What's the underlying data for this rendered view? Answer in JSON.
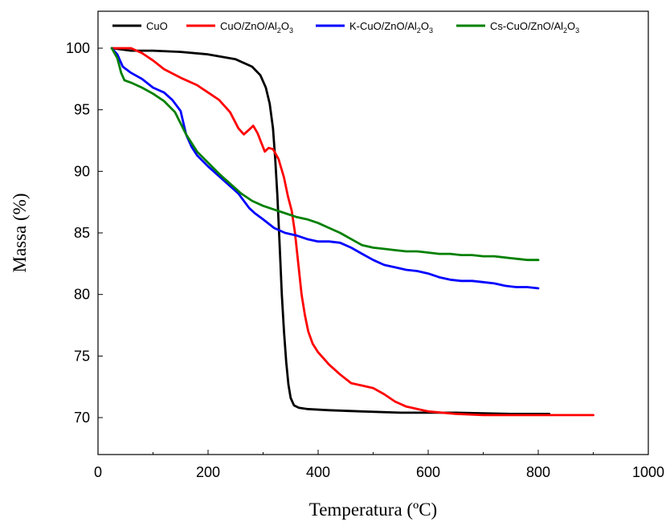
{
  "chart_data": {
    "type": "line",
    "title": "",
    "xlabel": "Temperatura (ºC)",
    "ylabel": "Massa (%)",
    "xlim": [
      0,
      1000
    ],
    "ylim": [
      67,
      103
    ],
    "xticks": [
      0,
      200,
      400,
      600,
      800,
      1000
    ],
    "yticks": [
      70,
      75,
      80,
      85,
      90,
      95,
      100
    ],
    "grid": false,
    "legend_position": "top",
    "series": [
      {
        "name": "CuO",
        "color": "#000000",
        "points": [
          [
            25,
            100
          ],
          [
            60,
            99.8
          ],
          [
            100,
            99.8
          ],
          [
            150,
            99.7
          ],
          [
            200,
            99.5
          ],
          [
            250,
            99.1
          ],
          [
            280,
            98.5
          ],
          [
            295,
            97.8
          ],
          [
            305,
            96.8
          ],
          [
            312,
            95.5
          ],
          [
            318,
            93.5
          ],
          [
            322,
            91
          ],
          [
            326,
            88
          ],
          [
            330,
            84
          ],
          [
            334,
            80
          ],
          [
            338,
            77
          ],
          [
            342,
            74.5
          ],
          [
            346,
            72.7
          ],
          [
            350,
            71.6
          ],
          [
            356,
            71
          ],
          [
            365,
            70.8
          ],
          [
            380,
            70.7
          ],
          [
            420,
            70.6
          ],
          [
            480,
            70.5
          ],
          [
            550,
            70.4
          ],
          [
            650,
            70.4
          ],
          [
            750,
            70.3
          ],
          [
            820,
            70.3
          ]
        ]
      },
      {
        "name": "CuO/ZnO/Al2O3",
        "name_sub": [
          "CuO/ZnO/Al",
          "2",
          "O",
          "3"
        ],
        "color": "#ff0000",
        "points": [
          [
            25,
            100
          ],
          [
            40,
            100
          ],
          [
            60,
            100
          ],
          [
            80,
            99.6
          ],
          [
            100,
            99
          ],
          [
            120,
            98.3
          ],
          [
            150,
            97.6
          ],
          [
            180,
            97
          ],
          [
            200,
            96.4
          ],
          [
            220,
            95.8
          ],
          [
            240,
            94.8
          ],
          [
            255,
            93.5
          ],
          [
            265,
            93
          ],
          [
            275,
            93.4
          ],
          [
            282,
            93.7
          ],
          [
            290,
            93.1
          ],
          [
            297,
            92.3
          ],
          [
            303,
            91.6
          ],
          [
            310,
            91.9
          ],
          [
            318,
            91.8
          ],
          [
            328,
            91
          ],
          [
            338,
            89.5
          ],
          [
            345,
            88
          ],
          [
            352,
            86.8
          ],
          [
            358,
            85
          ],
          [
            364,
            82.5
          ],
          [
            370,
            80
          ],
          [
            376,
            78.3
          ],
          [
            382,
            77
          ],
          [
            390,
            76
          ],
          [
            400,
            75.3
          ],
          [
            420,
            74.3
          ],
          [
            440,
            73.5
          ],
          [
            460,
            72.8
          ],
          [
            480,
            72.6
          ],
          [
            500,
            72.4
          ],
          [
            520,
            71.9
          ],
          [
            540,
            71.3
          ],
          [
            560,
            70.9
          ],
          [
            580,
            70.7
          ],
          [
            600,
            70.5
          ],
          [
            650,
            70.3
          ],
          [
            700,
            70.2
          ],
          [
            750,
            70.2
          ],
          [
            800,
            70.2
          ],
          [
            850,
            70.2
          ],
          [
            900,
            70.2
          ]
        ]
      },
      {
        "name": "K-CuO/ZnO/Al2O3",
        "name_sub": [
          "K-CuO/ZnO/Al",
          "2",
          "O",
          "3"
        ],
        "color": "#0000ff",
        "points": [
          [
            25,
            100
          ],
          [
            35,
            99.5
          ],
          [
            45,
            98.5
          ],
          [
            60,
            98
          ],
          [
            80,
            97.5
          ],
          [
            100,
            96.8
          ],
          [
            110,
            96.6
          ],
          [
            120,
            96.4
          ],
          [
            135,
            95.8
          ],
          [
            150,
            94.9
          ],
          [
            160,
            93
          ],
          [
            170,
            92
          ],
          [
            180,
            91.3
          ],
          [
            200,
            90.4
          ],
          [
            220,
            89.6
          ],
          [
            240,
            88.8
          ],
          [
            255,
            88.2
          ],
          [
            265,
            87.6
          ],
          [
            275,
            87
          ],
          [
            285,
            86.6
          ],
          [
            300,
            86.1
          ],
          [
            320,
            85.4
          ],
          [
            340,
            85
          ],
          [
            360,
            84.8
          ],
          [
            380,
            84.5
          ],
          [
            400,
            84.3
          ],
          [
            420,
            84.3
          ],
          [
            440,
            84.2
          ],
          [
            460,
            83.8
          ],
          [
            480,
            83.3
          ],
          [
            500,
            82.8
          ],
          [
            520,
            82.4
          ],
          [
            540,
            82.2
          ],
          [
            560,
            82
          ],
          [
            580,
            81.9
          ],
          [
            600,
            81.7
          ],
          [
            620,
            81.4
          ],
          [
            640,
            81.2
          ],
          [
            660,
            81.1
          ],
          [
            680,
            81.1
          ],
          [
            700,
            81
          ],
          [
            720,
            80.9
          ],
          [
            740,
            80.7
          ],
          [
            760,
            80.6
          ],
          [
            780,
            80.6
          ],
          [
            800,
            80.5
          ]
        ]
      },
      {
        "name": "Cs-CuO/ZnO/Al2O3",
        "name_sub": [
          "Cs-CuO/ZnO/Al",
          "2",
          "O",
          "3"
        ],
        "color": "#008000",
        "points": [
          [
            25,
            100
          ],
          [
            35,
            99.2
          ],
          [
            42,
            98
          ],
          [
            48,
            97.4
          ],
          [
            60,
            97.2
          ],
          [
            80,
            96.8
          ],
          [
            100,
            96.3
          ],
          [
            120,
            95.7
          ],
          [
            140,
            94.8
          ],
          [
            160,
            93
          ],
          [
            180,
            91.6
          ],
          [
            200,
            90.7
          ],
          [
            220,
            89.8
          ],
          [
            240,
            89
          ],
          [
            260,
            88.2
          ],
          [
            280,
            87.6
          ],
          [
            300,
            87.2
          ],
          [
            320,
            86.9
          ],
          [
            340,
            86.6
          ],
          [
            360,
            86.3
          ],
          [
            380,
            86.1
          ],
          [
            400,
            85.8
          ],
          [
            420,
            85.4
          ],
          [
            440,
            85
          ],
          [
            460,
            84.5
          ],
          [
            480,
            84
          ],
          [
            500,
            83.8
          ],
          [
            520,
            83.7
          ],
          [
            540,
            83.6
          ],
          [
            560,
            83.5
          ],
          [
            580,
            83.5
          ],
          [
            600,
            83.4
          ],
          [
            620,
            83.3
          ],
          [
            640,
            83.3
          ],
          [
            660,
            83.2
          ],
          [
            680,
            83.2
          ],
          [
            700,
            83.1
          ],
          [
            720,
            83.1
          ],
          [
            740,
            83
          ],
          [
            760,
            82.9
          ],
          [
            780,
            82.8
          ],
          [
            800,
            82.8
          ]
        ]
      }
    ]
  }
}
